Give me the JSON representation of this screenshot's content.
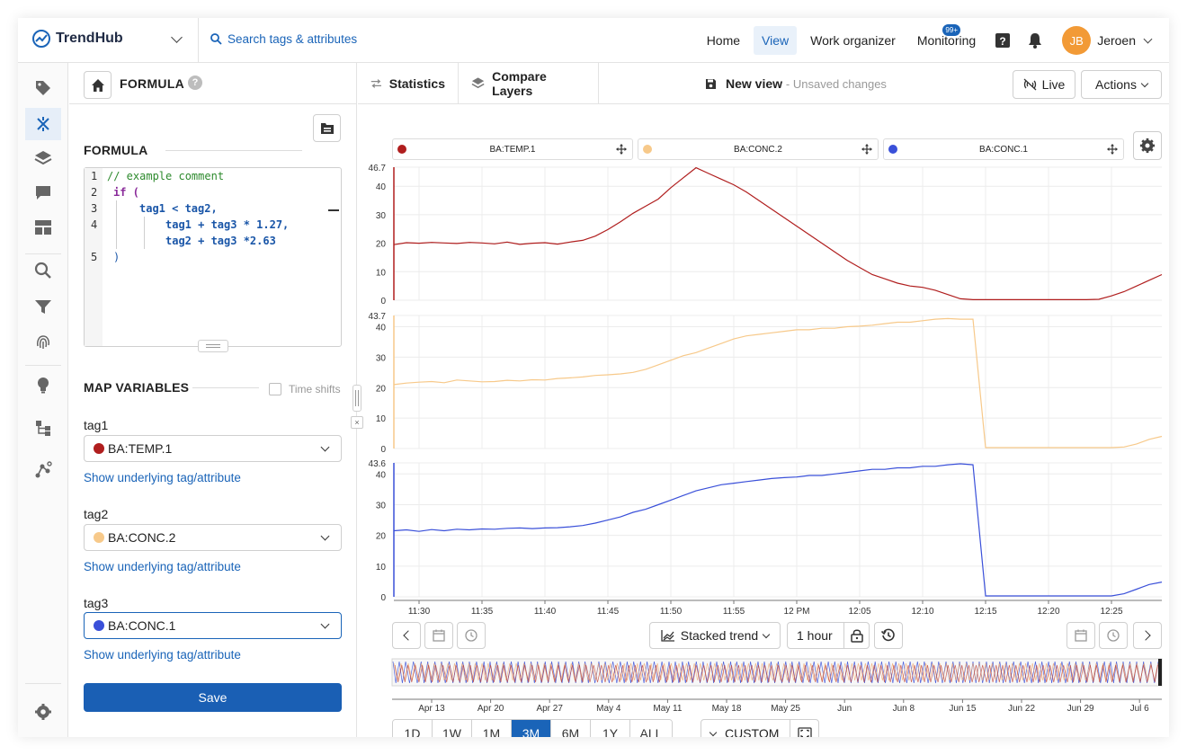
{
  "app": {
    "logo_text": "TrendHub"
  },
  "search": {
    "placeholder": "Search tags & attributes"
  },
  "nav": {
    "items": [
      {
        "label": "Home",
        "active": false
      },
      {
        "label": "View",
        "active": true
      },
      {
        "label": "Work organizer",
        "active": false
      },
      {
        "label": "Monitoring",
        "active": false
      }
    ],
    "monitoring_badge": "99+",
    "user_initials": "JB",
    "user_name": "Jeroen"
  },
  "formula_panel": {
    "header_title": "FORMULA",
    "section_title": "FORMULA",
    "code_lines": [
      "// example comment",
      "if (",
      "tag1 < tag2,",
      "tag1 + tag3 * 1.27,",
      "tag2 + tag3 *2.63",
      ")"
    ],
    "map_variables_title": "MAP VARIABLES",
    "time_shifts_label": "Time shifts",
    "variables": [
      {
        "name": "tag1",
        "tag": "BA:TEMP.1",
        "color": "#b01e1e",
        "link": "Show underlying tag/attribute"
      },
      {
        "name": "tag2",
        "tag": "BA:CONC.2",
        "color": "#f7c98a",
        "link": "Show underlying tag/attribute"
      },
      {
        "name": "tag3",
        "tag": "BA:CONC.1",
        "color": "#3a50d9",
        "link": "Show underlying tag/attribute"
      }
    ],
    "save_label": "Save"
  },
  "main": {
    "tabs": [
      {
        "label": "Statistics"
      },
      {
        "label": "Compare Layers"
      }
    ],
    "view_name": "New view",
    "view_status": "- Unsaved changes",
    "live_label": "Live",
    "actions_label": "Actions",
    "legend": [
      {
        "label": "BA:TEMP.1",
        "color": "#b01e1e"
      },
      {
        "label": "BA:CONC.2",
        "color": "#f7c98a"
      },
      {
        "label": "BA:CONC.1",
        "color": "#3a50d9"
      }
    ],
    "trend_mode_label": "Stacked trend",
    "window_label": "1 hour",
    "ranges": [
      {
        "label": "1D",
        "active": false
      },
      {
        "label": "1W",
        "active": false
      },
      {
        "label": "1M",
        "active": false
      },
      {
        "label": "3M",
        "active": true
      },
      {
        "label": "6M",
        "active": false
      },
      {
        "label": "1Y",
        "active": false
      },
      {
        "label": "ALL",
        "active": false
      }
    ],
    "custom_label": "CUSTOM"
  },
  "chart_data": {
    "type": "line",
    "layout": "stacked",
    "x": [
      "11:28",
      "11:29",
      "11:30",
      "11:31",
      "11:32",
      "11:33",
      "11:34",
      "11:35",
      "11:36",
      "11:37",
      "11:38",
      "11:39",
      "11:40",
      "11:41",
      "11:42",
      "11:43",
      "11:44",
      "11:45",
      "11:46",
      "11:47",
      "11:48",
      "11:49",
      "11:50",
      "11:51",
      "11:52",
      "11:53",
      "11:54",
      "11:55",
      "11:56",
      "11:57",
      "11:58",
      "11:59",
      "12:00",
      "12:01",
      "12:02",
      "12:03",
      "12:04",
      "12:05",
      "12:06",
      "12:07",
      "12:08",
      "12:09",
      "12:10",
      "12:11",
      "12:12",
      "12:13",
      "12:14",
      "12:15",
      "12:16",
      "12:17",
      "12:18",
      "12:19",
      "12:20",
      "12:21",
      "12:22",
      "12:23",
      "12:24",
      "12:25",
      "12:26",
      "12:27",
      "12:28",
      "12:29"
    ],
    "x_tick_labels": [
      "11:30",
      "11:35",
      "11:40",
      "11:45",
      "11:50",
      "11:55",
      "12 PM",
      "12:05",
      "12:10",
      "12:15",
      "12:20",
      "12:25"
    ],
    "panels": [
      {
        "name": "BA:TEMP.1",
        "color": "#b01e1e",
        "ymax_label": "46.7",
        "yticks": [
          "0",
          "10",
          "20",
          "30",
          "40"
        ],
        "ylim": [
          0,
          46.7
        ],
        "values": [
          19.5,
          20.2,
          20.0,
          20.3,
          20.1,
          19.9,
          20.3,
          20.1,
          19.8,
          20.4,
          19.6,
          20.0,
          20.2,
          19.7,
          20.4,
          21.0,
          22.5,
          24.8,
          27.5,
          30.5,
          33.0,
          35.5,
          39.5,
          43.0,
          46.5,
          44.5,
          42.5,
          40.5,
          38.0,
          35.0,
          32.0,
          29.0,
          26.0,
          23.0,
          20.0,
          17.0,
          14.0,
          11.5,
          9.0,
          7.5,
          6.0,
          5.0,
          4.5,
          3.5,
          2.0,
          0.5,
          0.2,
          0.2,
          0.2,
          0.2,
          0.2,
          0.2,
          0.2,
          0.2,
          0.2,
          0.2,
          0.3,
          1.5,
          3.0,
          5.0,
          7.0,
          9.0
        ]
      },
      {
        "name": "BA:CONC.2",
        "color": "#f7c98a",
        "ymax_label": "43.7",
        "yticks": [
          "0",
          "10",
          "20",
          "30",
          "40"
        ],
        "ylim": [
          0,
          43.7
        ],
        "values": [
          21.0,
          21.5,
          21.8,
          22.0,
          21.6,
          22.5,
          22.2,
          21.9,
          22.0,
          22.4,
          22.2,
          22.6,
          22.5,
          23.0,
          23.2,
          23.5,
          24.0,
          24.2,
          24.5,
          25.0,
          26.0,
          27.5,
          29.0,
          30.5,
          31.5,
          33.0,
          34.5,
          36.0,
          37.0,
          37.5,
          38.0,
          38.5,
          39.0,
          39.0,
          39.5,
          39.5,
          40.0,
          40.2,
          40.5,
          41.0,
          41.5,
          41.5,
          42.0,
          42.5,
          42.7,
          42.5,
          42.5,
          0.3,
          0.3,
          0.3,
          0.3,
          0.3,
          0.3,
          0.3,
          0.3,
          0.3,
          0.3,
          0.3,
          0.5,
          1.5,
          3.0,
          4.0
        ]
      },
      {
        "name": "BA:CONC.1",
        "color": "#3a50d9",
        "ymax_label": "43.6",
        "yticks": [
          "0",
          "10",
          "20",
          "30",
          "40"
        ],
        "ylim": [
          0,
          43.6
        ],
        "values": [
          21.5,
          21.8,
          21.3,
          21.9,
          21.5,
          22.0,
          21.8,
          22.1,
          22.0,
          22.3,
          22.4,
          22.2,
          22.4,
          22.5,
          22.8,
          23.2,
          24.0,
          25.0,
          26.0,
          27.5,
          28.5,
          30.0,
          31.5,
          33.0,
          34.5,
          35.5,
          36.5,
          37.0,
          37.5,
          38.0,
          38.5,
          38.8,
          39.0,
          39.5,
          39.5,
          40.0,
          40.5,
          41.0,
          41.5,
          41.5,
          42.0,
          42.0,
          42.5,
          42.5,
          43.0,
          43.3,
          43.0,
          0.3,
          0.3,
          0.3,
          0.3,
          0.3,
          0.3,
          0.3,
          0.3,
          0.3,
          0.3,
          0.3,
          1.0,
          2.5,
          4.0,
          4.8
        ]
      }
    ],
    "navigator_tick_labels": [
      "Apr 13",
      "Apr 20",
      "Apr 27",
      "May 4",
      "May 11",
      "May 18",
      "May 25",
      "Jun",
      "Jun 8",
      "Jun 15",
      "Jun 22",
      "Jun 29",
      "Jul 6"
    ]
  }
}
